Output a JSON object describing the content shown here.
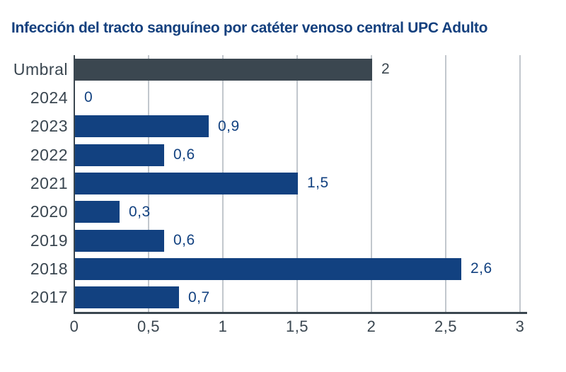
{
  "title": "Infección del tracto sanguíneo por catéter venoso central UPC Adulto",
  "chart_data": {
    "type": "bar",
    "orientation": "horizontal",
    "title": "Infección del tracto sanguíneo por catéter venoso central UPC Adulto",
    "categories": [
      "Umbral",
      "2024",
      "2023",
      "2022",
      "2021",
      "2020",
      "2019",
      "2018",
      "2017"
    ],
    "values": [
      2,
      0,
      0.9,
      0.6,
      1.5,
      0.3,
      0.6,
      2.6,
      0.7
    ],
    "value_labels": [
      "2",
      "0",
      "0,9",
      "0,6",
      "1,5",
      "0,3",
      "0,6",
      "2,6",
      "0,7"
    ],
    "bar_colors": [
      "#3B4750",
      "#124180",
      "#124180",
      "#124180",
      "#124180",
      "#124180",
      "#124180",
      "#124180",
      "#124180"
    ],
    "value_label_colors": [
      "#3B4750",
      "#124180",
      "#124180",
      "#124180",
      "#124180",
      "#124180",
      "#124180",
      "#124180",
      "#124180"
    ],
    "xlabel": "",
    "ylabel": "",
    "xlim": [
      0,
      3.05
    ],
    "x_ticks": [
      0,
      0.5,
      1,
      1.5,
      2,
      2.5,
      3
    ],
    "x_tick_labels": [
      "0",
      "0,5",
      "1",
      "1,5",
      "2",
      "2,5",
      "3"
    ],
    "grid": true,
    "legend": "none",
    "colors": {
      "title": "#14407E",
      "threshold_bar": "#3B4750",
      "year_bar": "#124180",
      "axis_line": "#3B4750",
      "gridline": "#C2C7CD",
      "category_label": "#3A4650",
      "tick_label": "#3A4650",
      "background": "#FFFFFF"
    }
  }
}
